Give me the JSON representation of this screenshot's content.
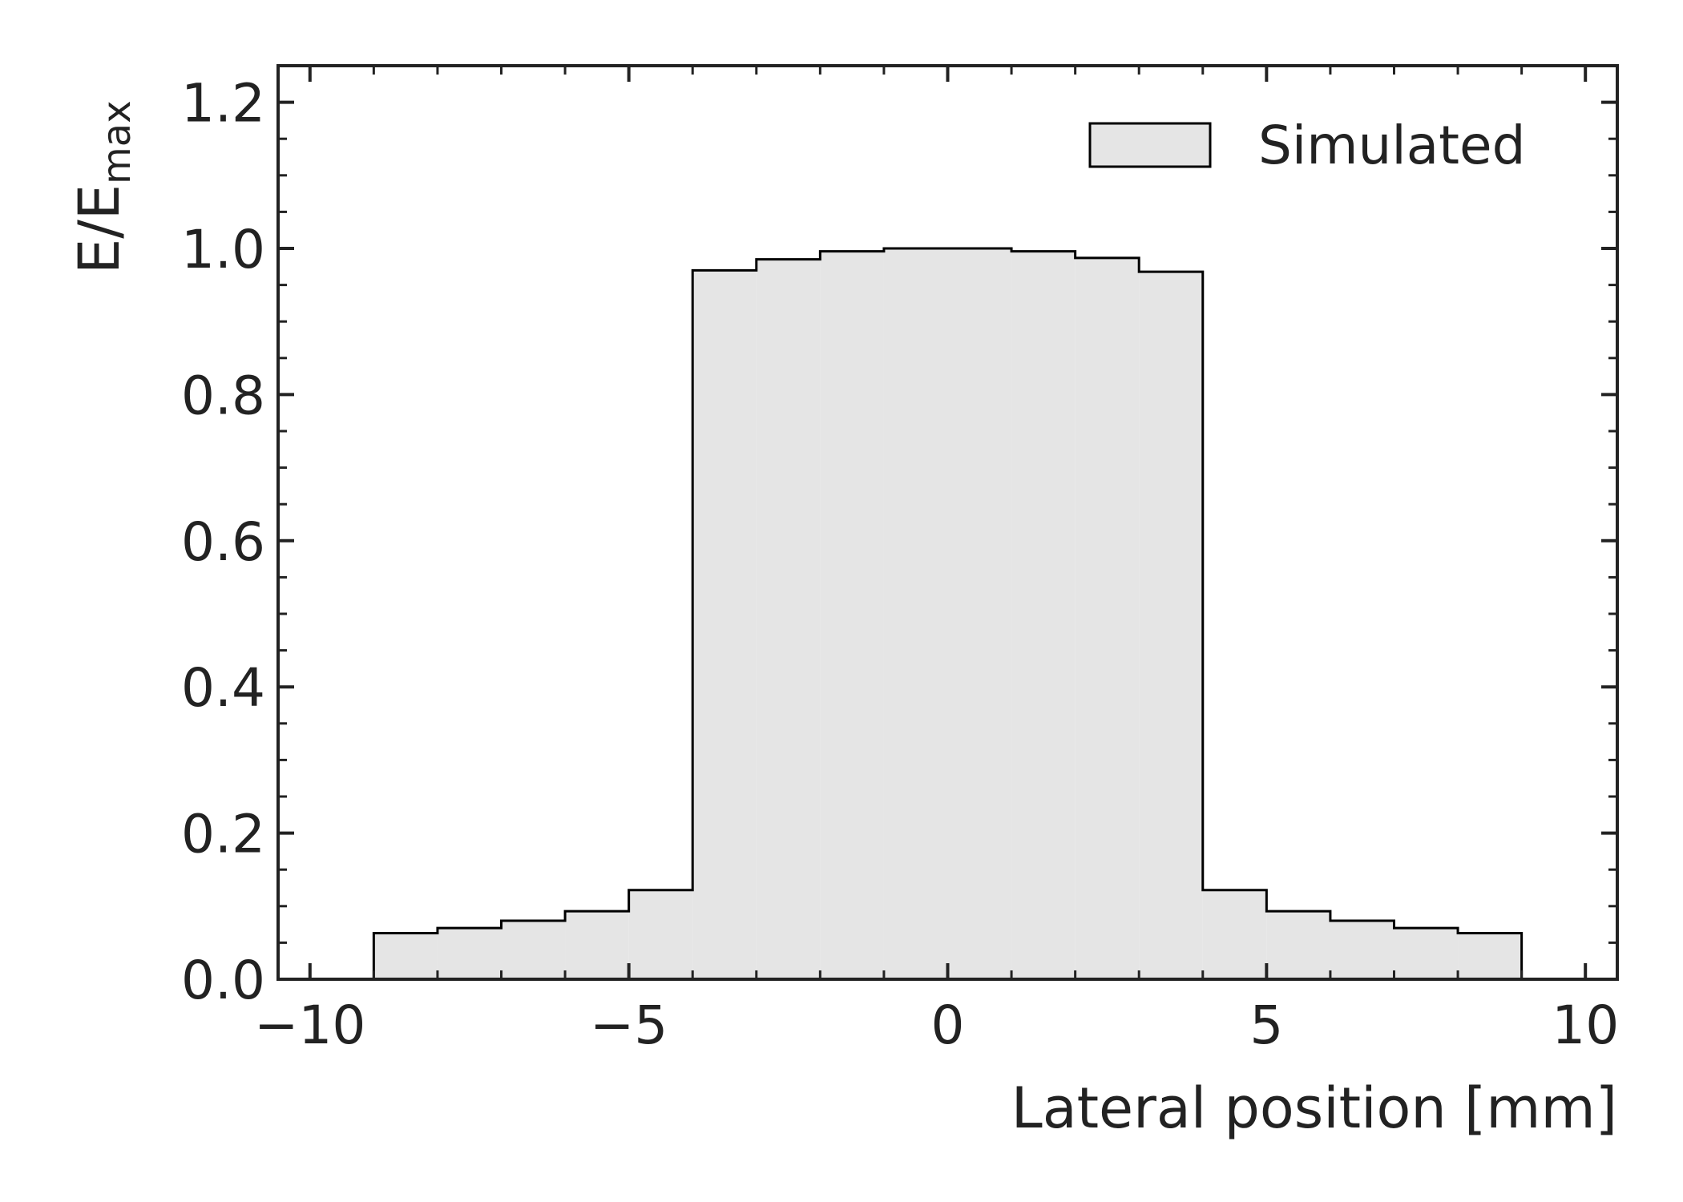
{
  "chart_data": {
    "type": "bar",
    "style": "step-histogram",
    "xlabel": "Lateral position [mm]",
    "ylabel": {
      "base": "E/E",
      "subscript": "max"
    },
    "xlim": [
      -10.5,
      10.5
    ],
    "ylim": [
      0.0,
      1.25
    ],
    "xticks": [
      -10,
      -5,
      0,
      5,
      10
    ],
    "xtick_labels": [
      "−10",
      "−5",
      "0",
      "5",
      "10"
    ],
    "yticks": [
      0.0,
      0.2,
      0.4,
      0.6,
      0.8,
      1.0,
      1.2
    ],
    "ytick_labels": [
      "0.0",
      "0.2",
      "0.4",
      "0.6",
      "0.8",
      "1.0",
      "1.2"
    ],
    "x_minor_step": 1,
    "y_minor_step": 0.05,
    "bin_edges": [
      -9,
      -8,
      -7,
      -6,
      -5,
      -4,
      -3,
      -2,
      -1,
      0,
      1,
      2,
      3,
      4,
      5,
      6,
      7,
      8,
      9
    ],
    "series": [
      {
        "name": "Simulated",
        "values": [
          0.063,
          0.07,
          0.08,
          0.093,
          0.122,
          0.97,
          0.985,
          0.996,
          1.0,
          1.0,
          0.996,
          0.987,
          0.968,
          0.122,
          0.093,
          0.08,
          0.07,
          0.063
        ]
      }
    ],
    "fill_color": "#e5e5e5",
    "edge_color": "#000000",
    "legend_position": "top-right",
    "grid": false
  }
}
